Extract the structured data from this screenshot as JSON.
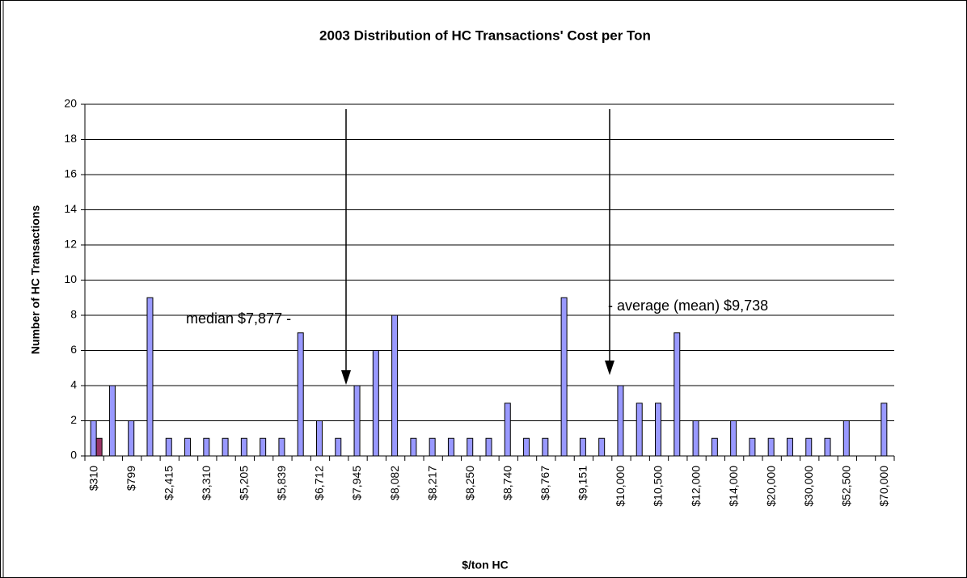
{
  "chart_data": {
    "type": "bar",
    "title": "2003 Distribution of HC Transactions' Cost per Ton",
    "x_label": "$/ton HC",
    "y_label": "Number of HC Transactions",
    "categories": [
      "$310",
      null,
      "$799",
      null,
      "$2,415",
      null,
      "$3,310",
      null,
      "$5,205",
      null,
      "$5,839",
      null,
      "$6,712",
      null,
      "$7,945",
      null,
      "$8,082",
      null,
      "$8,217",
      null,
      "$8,250",
      null,
      "$8,740",
      null,
      "$8,767",
      null,
      "$9,151",
      null,
      "$10,000",
      null,
      "$10,500",
      null,
      "$12,000",
      null,
      "$14,000",
      null,
      "$20,000",
      null,
      "$30,000",
      null,
      "$52,500",
      null,
      "$70,000"
    ],
    "series": [
      {
        "color": "#9999ff",
        "values": [
          2,
          4,
          2,
          9,
          1,
          1,
          1,
          1,
          1,
          1,
          1,
          7,
          2,
          1,
          4,
          6,
          8,
          1,
          1,
          1,
          1,
          1,
          3,
          1,
          1,
          9,
          1,
          1,
          4,
          3,
          3,
          7,
          2,
          1,
          2,
          1,
          1,
          1,
          1,
          1,
          2,
          null,
          3
        ]
      },
      {
        "color": "#993366",
        "values": [
          1,
          null,
          null,
          null,
          null,
          null,
          null,
          null,
          null,
          null,
          null,
          null,
          null,
          null,
          null,
          null,
          null,
          null,
          null,
          null,
          null,
          null,
          null,
          null,
          null,
          null,
          null,
          null,
          null,
          null,
          null,
          null,
          null,
          null,
          null,
          null,
          null,
          null,
          null,
          null,
          null,
          null,
          null
        ]
      }
    ],
    "ylim": [
      0,
      20
    ],
    "yticks": [
      0,
      2,
      4,
      6,
      8,
      10,
      12,
      14,
      16,
      18,
      20
    ],
    "grid": true,
    "annotations": [
      "median  $7,877 -",
      "- average (mean)  $9,738"
    ]
  }
}
